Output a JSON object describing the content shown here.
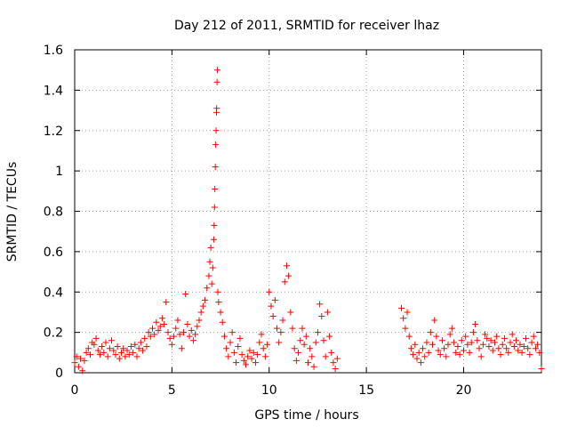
{
  "chart_data": {
    "type": "scatter",
    "title": "Day 212 of 2011, SRMTID for receiver lhaz",
    "xlabel": "GPS time / hours",
    "ylabel": "SRMTID / TECUs",
    "xlim": [
      0,
      24
    ],
    "ylim": [
      0,
      1.6
    ],
    "xticks": [
      0,
      5,
      10,
      15,
      20
    ],
    "yticks": [
      0,
      0.2,
      0.4,
      0.6,
      0.8,
      1,
      1.2,
      1.4,
      1.6
    ],
    "ytick_labels": [
      "0",
      "0.2",
      "0.4",
      "0.6",
      "0.8",
      "1",
      "1.2",
      "1.4",
      "1.6"
    ],
    "grid": true,
    "marker": "+",
    "color": "#ff0000",
    "series": [
      {
        "points": [
          [
            0.0,
            0.05
          ],
          [
            0.1,
            0.08
          ],
          [
            0.2,
            0.03
          ],
          [
            0.3,
            0.07
          ],
          [
            0.4,
            0.01
          ],
          [
            0.5,
            0.06
          ],
          [
            0.6,
            0.1
          ],
          [
            0.7,
            0.12
          ],
          [
            0.8,
            0.09
          ],
          [
            0.9,
            0.15
          ],
          [
            1.0,
            0.14
          ],
          [
            1.1,
            0.17
          ],
          [
            1.2,
            0.11
          ],
          [
            1.3,
            0.09
          ],
          [
            1.4,
            0.13
          ],
          [
            1.5,
            0.1
          ],
          [
            1.6,
            0.15
          ],
          [
            1.7,
            0.08
          ],
          [
            1.8,
            0.12
          ],
          [
            1.9,
            0.16
          ],
          [
            2.0,
            0.11
          ],
          [
            2.1,
            0.09
          ],
          [
            2.2,
            0.13
          ],
          [
            2.3,
            0.07
          ],
          [
            2.4,
            0.1
          ],
          [
            2.5,
            0.12
          ],
          [
            2.6,
            0.08
          ],
          [
            2.7,
            0.11
          ],
          [
            2.8,
            0.09
          ],
          [
            2.9,
            0.13
          ],
          [
            3.0,
            0.1
          ],
          [
            3.1,
            0.14
          ],
          [
            3.2,
            0.08
          ],
          [
            3.3,
            0.12
          ],
          [
            3.4,
            0.15
          ],
          [
            3.5,
            0.11
          ],
          [
            3.6,
            0.17
          ],
          [
            3.7,
            0.13
          ],
          [
            3.8,
            0.2
          ],
          [
            3.9,
            0.18
          ],
          [
            4.0,
            0.22
          ],
          [
            4.1,
            0.19
          ],
          [
            4.2,
            0.25
          ],
          [
            4.3,
            0.21
          ],
          [
            4.4,
            0.23
          ],
          [
            4.5,
            0.27
          ],
          [
            4.6,
            0.24
          ],
          [
            4.7,
            0.35
          ],
          [
            4.8,
            0.2
          ],
          [
            4.9,
            0.17
          ],
          [
            5.0,
            0.14
          ],
          [
            5.1,
            0.18
          ],
          [
            5.2,
            0.22
          ],
          [
            5.3,
            0.26
          ],
          [
            5.4,
            0.19
          ],
          [
            5.5,
            0.12
          ],
          [
            5.6,
            0.2
          ],
          [
            5.7,
            0.39
          ],
          [
            5.8,
            0.24
          ],
          [
            5.9,
            0.18
          ],
          [
            6.0,
            0.21
          ],
          [
            6.1,
            0.16
          ],
          [
            6.2,
            0.19
          ],
          [
            6.3,
            0.23
          ],
          [
            6.4,
            0.26
          ],
          [
            6.5,
            0.3
          ],
          [
            6.6,
            0.33
          ],
          [
            6.7,
            0.36
          ],
          [
            6.8,
            0.42
          ],
          [
            6.9,
            0.48
          ],
          [
            6.95,
            0.55
          ],
          [
            7.0,
            0.62
          ],
          [
            7.05,
            0.44
          ],
          [
            7.1,
            0.52
          ],
          [
            7.15,
            0.66
          ],
          [
            7.17,
            0.73
          ],
          [
            7.19,
            0.82
          ],
          [
            7.21,
            0.91
          ],
          [
            7.23,
            1.02
          ],
          [
            7.25,
            1.13
          ],
          [
            7.27,
            1.2
          ],
          [
            7.29,
            1.29
          ],
          [
            7.3,
            1.31
          ],
          [
            7.32,
            1.44
          ],
          [
            7.34,
            1.5
          ],
          [
            7.36,
            0.4
          ],
          [
            7.4,
            0.35
          ],
          [
            7.5,
            0.3
          ],
          [
            7.6,
            0.25
          ],
          [
            7.7,
            0.18
          ],
          [
            7.8,
            0.12
          ],
          [
            7.9,
            0.08
          ],
          [
            8.0,
            0.15
          ],
          [
            8.1,
            0.2
          ],
          [
            8.2,
            0.1
          ],
          [
            8.3,
            0.05
          ],
          [
            8.4,
            0.13
          ],
          [
            8.5,
            0.17
          ],
          [
            8.6,
            0.09
          ],
          [
            8.7,
            0.06
          ],
          [
            8.8,
            0.04
          ],
          [
            8.9,
            0.08
          ],
          [
            9.0,
            0.11
          ],
          [
            9.1,
            0.07
          ],
          [
            9.2,
            0.1
          ],
          [
            9.3,
            0.05
          ],
          [
            9.4,
            0.09
          ],
          [
            9.5,
            0.15
          ],
          [
            9.6,
            0.19
          ],
          [
            9.7,
            0.12
          ],
          [
            9.8,
            0.08
          ],
          [
            9.9,
            0.14
          ],
          [
            10.0,
            0.4
          ],
          [
            10.1,
            0.33
          ],
          [
            10.2,
            0.28
          ],
          [
            10.3,
            0.36
          ],
          [
            10.4,
            0.22
          ],
          [
            10.5,
            0.15
          ],
          [
            10.6,
            0.2
          ],
          [
            10.7,
            0.26
          ],
          [
            10.8,
            0.45
          ],
          [
            10.9,
            0.53
          ],
          [
            11.0,
            0.48
          ],
          [
            11.1,
            0.3
          ],
          [
            11.2,
            0.22
          ],
          [
            11.3,
            0.12
          ],
          [
            11.4,
            0.06
          ],
          [
            11.5,
            0.1
          ],
          [
            11.6,
            0.16
          ],
          [
            11.7,
            0.22
          ],
          [
            11.8,
            0.14
          ],
          [
            11.9,
            0.18
          ],
          [
            12.0,
            0.05
          ],
          [
            12.1,
            0.12
          ],
          [
            12.2,
            0.08
          ],
          [
            12.3,
            0.03
          ],
          [
            12.4,
            0.15
          ],
          [
            12.5,
            0.2
          ],
          [
            12.6,
            0.34
          ],
          [
            12.7,
            0.28
          ],
          [
            12.8,
            0.16
          ],
          [
            12.9,
            0.08
          ],
          [
            13.0,
            0.3
          ],
          [
            13.1,
            0.18
          ],
          [
            13.2,
            0.1
          ],
          [
            13.3,
            0.05
          ],
          [
            13.4,
            0.02
          ],
          [
            13.5,
            0.07
          ],
          [
            16.8,
            0.32
          ],
          [
            16.9,
            0.27
          ],
          [
            17.0,
            0.22
          ],
          [
            17.1,
            0.3
          ],
          [
            17.2,
            0.18
          ],
          [
            17.3,
            0.12
          ],
          [
            17.4,
            0.09
          ],
          [
            17.5,
            0.14
          ],
          [
            17.6,
            0.07
          ],
          [
            17.7,
            0.1
          ],
          [
            17.8,
            0.05
          ],
          [
            17.9,
            0.12
          ],
          [
            18.0,
            0.08
          ],
          [
            18.1,
            0.15
          ],
          [
            18.2,
            0.1
          ],
          [
            18.3,
            0.2
          ],
          [
            18.4,
            0.14
          ],
          [
            18.5,
            0.26
          ],
          [
            18.6,
            0.18
          ],
          [
            18.7,
            0.11
          ],
          [
            18.8,
            0.09
          ],
          [
            18.9,
            0.16
          ],
          [
            19.0,
            0.12
          ],
          [
            19.1,
            0.08
          ],
          [
            19.2,
            0.14
          ],
          [
            19.3,
            0.19
          ],
          [
            19.4,
            0.22
          ],
          [
            19.5,
            0.15
          ],
          [
            19.6,
            0.1
          ],
          [
            19.7,
            0.13
          ],
          [
            19.8,
            0.09
          ],
          [
            19.9,
            0.16
          ],
          [
            20.0,
            0.11
          ],
          [
            20.1,
            0.18
          ],
          [
            20.2,
            0.14
          ],
          [
            20.3,
            0.1
          ],
          [
            20.4,
            0.15
          ],
          [
            20.5,
            0.2
          ],
          [
            20.6,
            0.24
          ],
          [
            20.7,
            0.16
          ],
          [
            20.8,
            0.12
          ],
          [
            20.9,
            0.08
          ],
          [
            21.0,
            0.14
          ],
          [
            21.1,
            0.19
          ],
          [
            21.2,
            0.17
          ],
          [
            21.3,
            0.13
          ],
          [
            21.4,
            0.16
          ],
          [
            21.5,
            0.11
          ],
          [
            21.6,
            0.15
          ],
          [
            21.7,
            0.18
          ],
          [
            21.8,
            0.12
          ],
          [
            21.9,
            0.09
          ],
          [
            22.0,
            0.14
          ],
          [
            22.1,
            0.17
          ],
          [
            22.2,
            0.12
          ],
          [
            22.3,
            0.1
          ],
          [
            22.4,
            0.15
          ],
          [
            22.5,
            0.19
          ],
          [
            22.6,
            0.13
          ],
          [
            22.7,
            0.16
          ],
          [
            22.8,
            0.11
          ],
          [
            22.9,
            0.14
          ],
          [
            23.0,
            0.1
          ],
          [
            23.1,
            0.13
          ],
          [
            23.2,
            0.17
          ],
          [
            23.3,
            0.12
          ],
          [
            23.4,
            0.09
          ],
          [
            23.5,
            0.15
          ],
          [
            23.6,
            0.18
          ],
          [
            23.7,
            0.12
          ],
          [
            23.8,
            0.14
          ],
          [
            23.9,
            0.1
          ],
          [
            24.0,
            0.02
          ]
        ]
      }
    ]
  }
}
